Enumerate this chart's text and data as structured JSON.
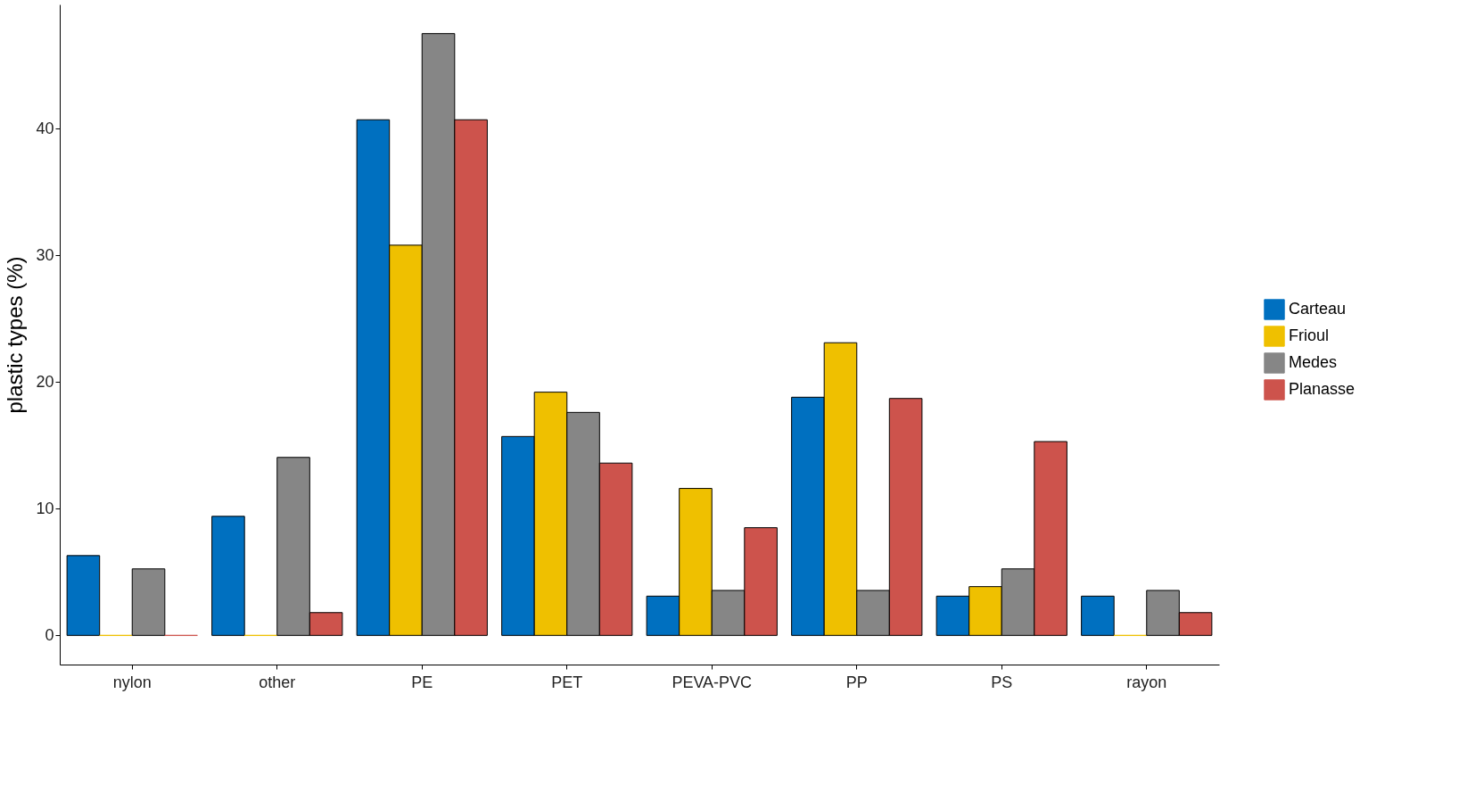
{
  "chart_data": {
    "type": "bar",
    "ylabel": "plastic types (%)",
    "categories": [
      "nylon",
      "other",
      "PE",
      "PET",
      "PEVA-PVC",
      "PP",
      "PS",
      "rayon"
    ],
    "series": [
      {
        "name": "Carteau",
        "color": "#0070c0",
        "values": [
          6.3,
          9.4,
          40.7,
          15.7,
          3.1,
          18.8,
          3.1,
          3.1
        ]
      },
      {
        "name": "Frioul",
        "color": "#efc000",
        "values": [
          0,
          0,
          30.8,
          19.2,
          11.6,
          23.1,
          3.85,
          0
        ]
      },
      {
        "name": "Medes",
        "color": "#868686",
        "values": [
          5.25,
          14.05,
          47.5,
          17.6,
          3.55,
          3.55,
          5.25,
          3.55
        ]
      },
      {
        "name": "Planasse",
        "color": "#cd534c",
        "values": [
          0,
          1.8,
          40.7,
          13.6,
          8.5,
          18.7,
          15.3,
          1.8
        ]
      }
    ],
    "ylim": [
      -2.3,
      49.8
    ],
    "yticks": [
      0,
      10,
      20,
      30,
      40
    ],
    "grid": false,
    "legend": "right"
  }
}
